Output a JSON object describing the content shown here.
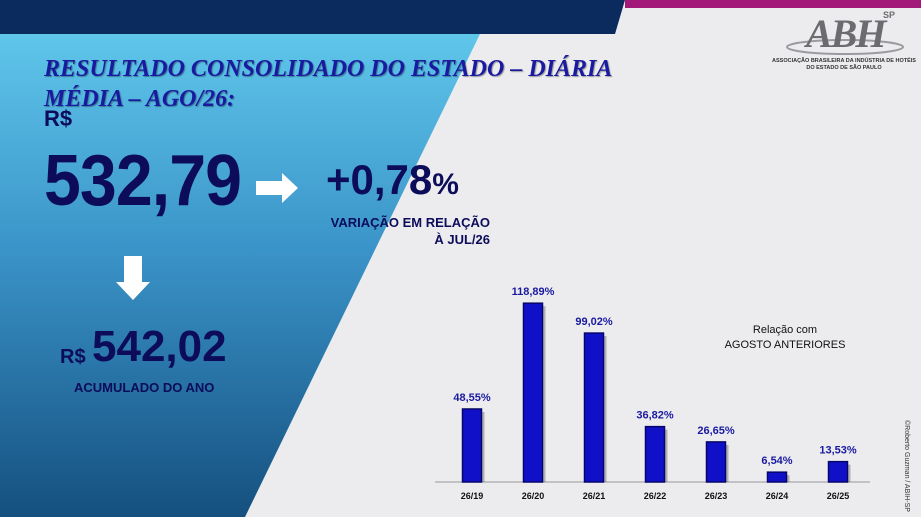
{
  "header": {
    "title": "RESULTADO CONSOLIDADO DO ESTADO – DIÁRIA MÉDIA – AGO/26:"
  },
  "main": {
    "currency": "R$",
    "value": "532,79",
    "variation_value": "+0,78",
    "variation_unit": "%",
    "variation_caption_line1": "VARIAÇÃO EM RELAÇÃO",
    "variation_caption_line2": "À JUL/26",
    "accumulated_currency": "R$",
    "accumulated_value": "542,02",
    "accumulated_caption": "ACUMULADO DO ANO"
  },
  "logo": {
    "letters": "ABH",
    "superscript": "SP",
    "subtitle_line1": "ASSOCIAÇÃO BRASILEIRA DA INDÚSTRIA DE HOTÉIS",
    "subtitle_line2": "DO ESTADO DE SÃO PAULO"
  },
  "credit": "©Roberto Guzman / ABIH-SP",
  "colors": {
    "bar": "#1010c8",
    "bar_dark": "#05056a",
    "text_dark": "#0c0c5a",
    "label": "#1a1aa0",
    "accent_pink": "#a3197a",
    "navy": "#0b2a5e"
  },
  "chart_data": {
    "type": "bar",
    "categories": [
      "26/19",
      "26/20",
      "26/21",
      "26/22",
      "26/23",
      "26/24",
      "26/25"
    ],
    "values": [
      48.55,
      118.89,
      99.02,
      36.82,
      26.65,
      6.54,
      13.53
    ],
    "data_labels": [
      "48,55%",
      "118,89%",
      "99,02%",
      "36,82%",
      "26,65%",
      "6,54%",
      "13,53%"
    ],
    "legend_line1": "Relação com",
    "legend_line2": "AGOSTO ANTERIORES",
    "grid": false,
    "ylim": [
      0,
      125
    ]
  }
}
